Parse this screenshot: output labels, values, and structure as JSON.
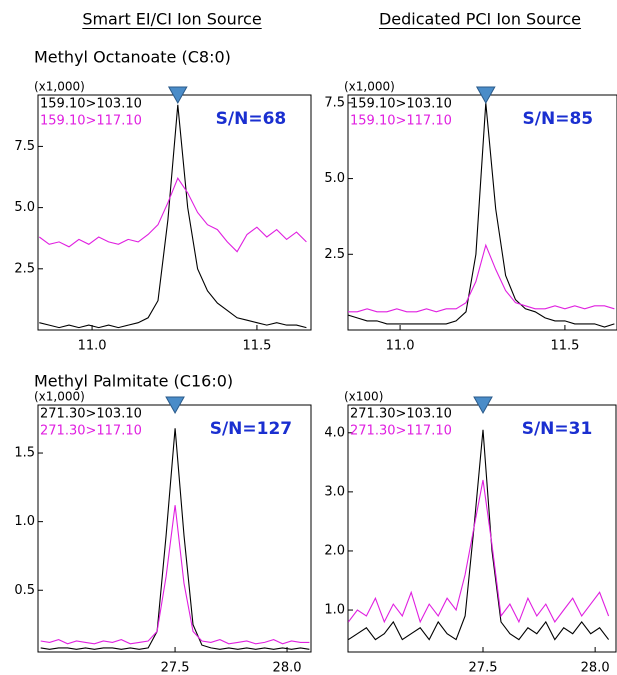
{
  "columns": [
    "Smart EI/CI Ion Source",
    "Dedicated PCI Ion Source"
  ],
  "row_labels": [
    "Methyl Octanoate (C8:0)",
    "Methyl Palmitate (C16:0)"
  ],
  "chart_data": [
    {
      "type": "line",
      "scale_label": "(x1,000)",
      "annotation": "S/N=68",
      "peak_x": 11.26,
      "x": [
        10.84,
        10.87,
        10.9,
        10.93,
        10.96,
        10.99,
        11.02,
        11.05,
        11.08,
        11.11,
        11.14,
        11.17,
        11.2,
        11.23,
        11.26,
        11.29,
        11.32,
        11.35,
        11.38,
        11.41,
        11.44,
        11.47,
        11.5,
        11.53,
        11.56,
        11.59,
        11.62,
        11.65
      ],
      "series": [
        {
          "name": "159.10>103.10",
          "color": "#000000",
          "values": [
            0.3,
            0.2,
            0.1,
            0.2,
            0.1,
            0.2,
            0.1,
            0.2,
            0.1,
            0.2,
            0.3,
            0.5,
            1.2,
            4.5,
            9.2,
            5.0,
            2.5,
            1.6,
            1.1,
            0.8,
            0.5,
            0.4,
            0.3,
            0.2,
            0.3,
            0.2,
            0.2,
            0.1
          ]
        },
        {
          "name": "159.10>117.10",
          "color": "#e020e0",
          "values": [
            3.8,
            3.5,
            3.6,
            3.4,
            3.7,
            3.5,
            3.8,
            3.6,
            3.5,
            3.7,
            3.6,
            3.9,
            4.3,
            5.2,
            6.2,
            5.6,
            4.8,
            4.3,
            4.1,
            3.6,
            3.2,
            3.9,
            4.2,
            3.8,
            4.1,
            3.7,
            4.0,
            3.6
          ]
        }
      ],
      "xlim": [
        10.836,
        11.664
      ],
      "ylim": [
        0,
        9.6
      ],
      "xticks": [
        {
          "value": 11,
          "label": "11.0"
        },
        11.5
      ],
      "yticks": [
        2.5,
        {
          "value": 5,
          "label": "5.0"
        },
        7.5
      ]
    },
    {
      "type": "line",
      "scale_label": "(x1,000)",
      "annotation": "S/N=85",
      "peak_x": 11.26,
      "x": [
        10.84,
        10.87,
        10.9,
        10.93,
        10.96,
        10.99,
        11.02,
        11.05,
        11.08,
        11.11,
        11.14,
        11.17,
        11.2,
        11.23,
        11.26,
        11.29,
        11.32,
        11.35,
        11.38,
        11.41,
        11.44,
        11.47,
        11.5,
        11.53,
        11.56,
        11.59,
        11.62,
        11.65
      ],
      "series": [
        {
          "name": "159.10>103.10",
          "color": "#000000",
          "values": [
            0.5,
            0.4,
            0.3,
            0.3,
            0.2,
            0.2,
            0.2,
            0.2,
            0.2,
            0.2,
            0.2,
            0.3,
            0.6,
            2.5,
            7.5,
            4.0,
            1.8,
            1.0,
            0.7,
            0.6,
            0.4,
            0.3,
            0.3,
            0.2,
            0.2,
            0.2,
            0.1,
            0.2
          ]
        },
        {
          "name": "159.10>117.10",
          "color": "#e020e0",
          "values": [
            0.6,
            0.6,
            0.7,
            0.6,
            0.6,
            0.7,
            0.6,
            0.6,
            0.7,
            0.6,
            0.7,
            0.7,
            0.9,
            1.6,
            2.8,
            2.0,
            1.3,
            0.9,
            0.8,
            0.7,
            0.7,
            0.8,
            0.7,
            0.8,
            0.7,
            0.8,
            0.8,
            0.7
          ]
        }
      ],
      "xlim": [
        10.842,
        11.658
      ],
      "ylim": [
        0,
        7.76
      ],
      "xticks": [
        {
          "value": 11,
          "label": "11.0"
        },
        11.5
      ],
      "yticks": [
        2.5,
        {
          "value": 5,
          "label": "5.0"
        },
        7.5
      ]
    },
    {
      "type": "line",
      "scale_label": "(x1,000)",
      "annotation": "S/N=127",
      "peak_x": 27.5,
      "x": [
        26.9,
        26.94,
        26.98,
        27.02,
        27.06,
        27.1,
        27.14,
        27.18,
        27.22,
        27.26,
        27.3,
        27.34,
        27.38,
        27.42,
        27.46,
        27.5,
        27.54,
        27.58,
        27.62,
        27.66,
        27.7,
        27.74,
        27.78,
        27.82,
        27.86,
        27.9,
        27.94,
        27.98,
        28.02,
        28.06,
        28.1
      ],
      "series": [
        {
          "name": "271.30>103.10",
          "color": "#000000",
          "values": [
            0.08,
            0.07,
            0.08,
            0.08,
            0.07,
            0.08,
            0.07,
            0.08,
            0.08,
            0.07,
            0.08,
            0.07,
            0.08,
            0.2,
            0.9,
            1.68,
            0.9,
            0.25,
            0.1,
            0.08,
            0.07,
            0.08,
            0.07,
            0.08,
            0.07,
            0.08,
            0.07,
            0.08,
            0.07,
            0.08,
            0.07
          ]
        },
        {
          "name": "271.30>117.10",
          "color": "#e020e0",
          "values": [
            0.13,
            0.12,
            0.14,
            0.11,
            0.13,
            0.12,
            0.11,
            0.13,
            0.12,
            0.14,
            0.11,
            0.12,
            0.13,
            0.2,
            0.6,
            1.12,
            0.55,
            0.2,
            0.13,
            0.12,
            0.14,
            0.11,
            0.12,
            0.13,
            0.11,
            0.12,
            0.14,
            0.11,
            0.13,
            0.12,
            0.12
          ]
        }
      ],
      "xlim": [
        26.888,
        28.107
      ],
      "ylim": [
        0.05,
        1.85
      ],
      "xticks": [
        27.5,
        {
          "value": 28,
          "label": "28.0"
        }
      ],
      "yticks": [
        0.5,
        {
          "value": 1,
          "label": "1.0"
        },
        1.5
      ]
    },
    {
      "type": "line",
      "scale_label": "(x100)",
      "annotation": "S/N=31",
      "peak_x": 27.5,
      "x": [
        26.9,
        26.94,
        26.98,
        27.02,
        27.06,
        27.1,
        27.14,
        27.18,
        27.22,
        27.26,
        27.3,
        27.34,
        27.38,
        27.42,
        27.46,
        27.5,
        27.54,
        27.58,
        27.62,
        27.66,
        27.7,
        27.74,
        27.78,
        27.82,
        27.86,
        27.9,
        27.94,
        27.98,
        28.02,
        28.06
      ],
      "series": [
        {
          "name": "271.30>103.10",
          "color": "#000000",
          "values": [
            0.5,
            0.6,
            0.7,
            0.5,
            0.6,
            0.8,
            0.5,
            0.6,
            0.7,
            0.5,
            0.8,
            0.6,
            0.5,
            0.9,
            2.4,
            4.05,
            2.0,
            0.8,
            0.6,
            0.5,
            0.7,
            0.6,
            0.8,
            0.5,
            0.7,
            0.6,
            0.8,
            0.6,
            0.7,
            0.5
          ]
        },
        {
          "name": "271.30>117.10",
          "color": "#e020e0",
          "values": [
            0.8,
            1.0,
            0.9,
            1.2,
            0.8,
            1.1,
            0.9,
            1.3,
            0.8,
            1.1,
            0.9,
            1.2,
            1.0,
            1.6,
            2.4,
            3.2,
            2.1,
            0.9,
            1.1,
            0.8,
            1.2,
            0.9,
            1.1,
            0.8,
            1.0,
            1.2,
            0.9,
            1.1,
            1.3,
            0.9
          ]
        }
      ],
      "xlim": [
        26.898,
        28.093
      ],
      "ylim": [
        0.29,
        4.47
      ],
      "xticks": [
        27.5,
        {
          "value": 28,
          "label": "28.0"
        }
      ],
      "yticks": [
        {
          "value": 1,
          "label": "1.0"
        },
        {
          "value": 2,
          "label": "2.0"
        },
        {
          "value": 3,
          "label": "3.0"
        },
        {
          "value": 4,
          "label": "4.0"
        }
      ]
    }
  ]
}
